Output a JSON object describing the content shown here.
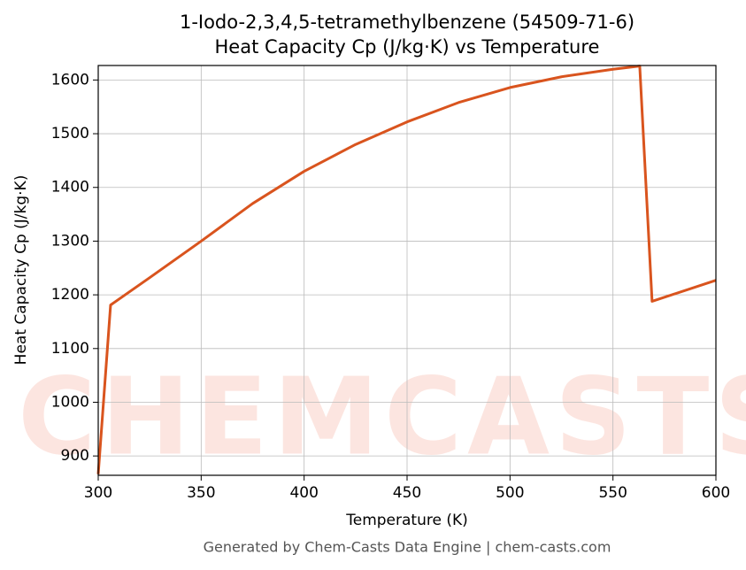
{
  "chart_data": {
    "type": "line",
    "title": "1-Iodo-2,3,4,5-tetramethylbenzene (54509-71-6)",
    "subtitle": "Heat Capacity Cp (J/kg·K) vs Temperature",
    "x_label": "Temperature (K)",
    "y_label": "Heat Capacity Cp (J/kg·K)",
    "footer": "Generated by Chem-Casts Data Engine | chem-casts.com",
    "watermark": "CHEMCASTS",
    "x": [
      300,
      306,
      325,
      350,
      375,
      400,
      425,
      450,
      475,
      500,
      525,
      550,
      563,
      569,
      600
    ],
    "series": [
      {
        "name": "Cp",
        "color": "#d9541e",
        "values": [
          866,
          1181,
          1232,
          1300,
          1370,
          1430,
          1480,
          1522,
          1558,
          1586,
          1606,
          1620,
          1626,
          1188,
          1227
        ]
      }
    ],
    "xlim": [
      300,
      600
    ],
    "xticks": [
      300,
      350,
      400,
      450,
      500,
      550,
      600
    ],
    "ylim": [
      864,
      1627
    ],
    "yticks": [
      900,
      1000,
      1100,
      1200,
      1300,
      1400,
      1500,
      1600
    ],
    "grid": true
  }
}
